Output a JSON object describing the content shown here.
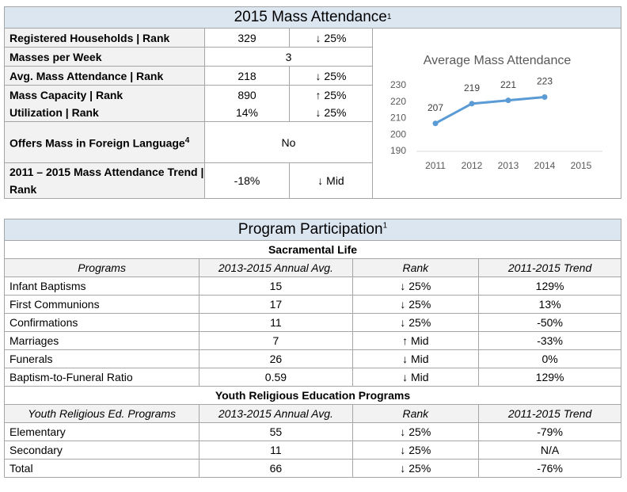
{
  "mass_attendance": {
    "title": "2015 Mass Attendance",
    "title_note": "1",
    "rows": [
      {
        "label": "Registered Households | Rank",
        "value": "329",
        "rank": "↓ 25%"
      },
      {
        "label": "Masses per Week",
        "value": "3"
      },
      {
        "label": "Avg. Mass Attendance | Rank",
        "value": "218",
        "rank": "↓ 25%"
      },
      {
        "label": "Mass Capacity | Rank",
        "value": "890",
        "rank": "↑ 25%"
      },
      {
        "label": "Utilization | Rank",
        "value": "14%",
        "rank": "↓ 25%"
      },
      {
        "label": "Offers Mass in Foreign Language",
        "label_note": "4",
        "value": "No"
      },
      {
        "label": "2011 – 2015 Mass Attendance Trend | Rank",
        "value": "-18%",
        "rank": "↓ Mid"
      }
    ],
    "chart": {
      "type": "line",
      "title": "Average Mass Attendance",
      "categories": [
        "2011",
        "2012",
        "2013",
        "2014",
        "2015"
      ],
      "values": [
        207,
        219,
        221,
        223,
        null
      ],
      "color": "#5b9bd5",
      "ylim": [
        190,
        230
      ],
      "yticks": [
        190,
        200,
        210,
        220,
        230
      ],
      "grid": false
    }
  },
  "program_participation": {
    "title": "Program Participation",
    "title_note": "1",
    "sections": [
      {
        "title": "Sacramental Life",
        "header": [
          "Programs",
          "2013-2015 Annual Avg.",
          "Rank",
          "2011-2015 Trend"
        ],
        "rows": [
          [
            "Infant Baptisms",
            "15",
            "↓ 25%",
            "129%"
          ],
          [
            "First Communions",
            "17",
            "↓ 25%",
            "13%"
          ],
          [
            "Confirmations",
            "11",
            "↓ 25%",
            "-50%"
          ],
          [
            "Marriages",
            "7",
            "↑ Mid",
            "-33%"
          ],
          [
            "Funerals",
            "26",
            "↓ Mid",
            "0%"
          ],
          [
            "Baptism-to-Funeral Ratio",
            "0.59",
            "↓ Mid",
            "129%"
          ]
        ]
      },
      {
        "title": "Youth Religious Education Programs",
        "header": [
          "Youth Religious Ed. Programs",
          "2013-2015 Annual Avg.",
          "Rank",
          "2011-2015 Trend"
        ],
        "rows": [
          [
            "Elementary",
            "55",
            "↓ 25%",
            "-79%"
          ],
          [
            "Secondary",
            "11",
            "↓ 25%",
            "N/A"
          ],
          [
            "Total",
            "66",
            "↓ 25%",
            "-76%"
          ]
        ]
      }
    ]
  }
}
